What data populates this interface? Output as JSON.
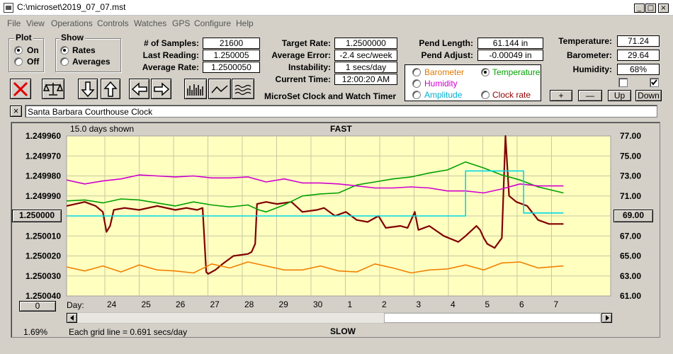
{
  "window": {
    "title": "C:\\microset\\2019_07_07.mst"
  },
  "menu": [
    "File",
    "View",
    "Operations",
    "Controls",
    "Watches",
    "GPS",
    "Configure",
    "Help"
  ],
  "plot_group": {
    "title": "Plot",
    "options": [
      "On",
      "Off"
    ],
    "selected": "On"
  },
  "show_group": {
    "title": "Show",
    "options": [
      "Rates",
      "Averages"
    ],
    "selected": "Rates"
  },
  "stats": {
    "samples_label": "# of Samples:",
    "samples": "21600",
    "last_reading_label": "Last Reading:",
    "last_reading": "1.250005",
    "average_rate_label": "Average Rate:",
    "average_rate": "1.2500050",
    "target_rate_label": "Target Rate:",
    "target_rate": "1.2500000",
    "average_error_label": "Average Error:",
    "average_error": "-2.4 sec/week",
    "instability_label": "Instability:",
    "instability": "1 secs/day",
    "current_time_label": "Current Time:",
    "current_time": "12:00:20 AM",
    "pend_length_label": "Pend Length:",
    "pend_length": "61.144 in",
    "pend_adjust_label": "Pend Adjust:",
    "pend_adjust": "-0.00049 in",
    "temperature_label": "Temperature:",
    "temperature": "71.24",
    "barometer_label": "Barometer:",
    "barometer": "29.64",
    "humidity_label": "Humidity:",
    "humidity": "68%"
  },
  "app_caption": "MicroSet Clock and Watch Timer",
  "second_axis_options": [
    {
      "label": "Barometer",
      "color": "#e07800",
      "selected": false
    },
    {
      "label": "Temperature",
      "color": "#00a000",
      "selected": true
    },
    {
      "label": "Humidity",
      "color": "#d000d0",
      "selected": false
    },
    {
      "label": "Amplitude",
      "color": "#00b0d0",
      "selected": false
    },
    {
      "label": "Clock rate",
      "color": "#900000",
      "selected": false
    }
  ],
  "right_buttons": {
    "plus": "+",
    "minus": "—",
    "up": "Up",
    "down": "Down"
  },
  "clock_name": "Santa Barbara Courthouse Clock",
  "close_glyph": "×",
  "plot": {
    "days_shown": "15.0 days shown",
    "fast": "FAST",
    "slow": "SLOW",
    "center_button": "1.250000",
    "right_center_button": "69.00",
    "bottom_button": "0",
    "percent": "1.69%",
    "grid_note": "Each grid line = 0.691 secs/day",
    "day_label": "Day:"
  },
  "chart_data": {
    "type": "line",
    "title": "",
    "y_left_ticks": [
      "1.249960",
      "1.249970",
      "1.249980",
      "1.249990",
      "1.250000",
      "1.250010",
      "1.250020",
      "1.250030",
      "1.250040"
    ],
    "y_left_range": [
      1.24996,
      1.25004
    ],
    "y_right_ticks": [
      "77.00",
      "75.00",
      "73.00",
      "71.00",
      "69.00",
      "67.00",
      "65.00",
      "63.00",
      "61.00"
    ],
    "y_right_range": [
      61,
      77
    ],
    "x_ticks": [
      "24",
      "25",
      "26",
      "27",
      "28",
      "29",
      "30",
      "1",
      "2",
      "3",
      "4",
      "5",
      "6",
      "7"
    ],
    "x_range": [
      0,
      15
    ],
    "grid": true,
    "series": [
      {
        "color": "#800000",
        "axis": "left",
        "x": [
          0,
          0.5,
          0.8,
          1.0,
          1.1,
          1.2,
          1.3,
          1.6,
          2.0,
          2.5,
          3.0,
          3.3,
          3.6,
          3.75,
          3.85,
          3.9,
          4.1,
          4.3,
          4.6,
          5.0,
          5.1,
          5.2,
          5.25,
          5.5,
          5.8,
          6.2,
          6.5,
          6.9,
          7.1,
          7.4,
          7.7,
          8.0,
          8.3,
          8.6,
          8.8,
          9.2,
          9.4,
          9.6,
          9.7,
          10.0,
          10.4,
          10.8,
          11.0,
          11.3,
          11.4,
          11.5,
          11.6,
          11.8,
          12.0,
          12.1,
          12.2,
          12.4,
          12.7,
          13.0,
          13.3,
          13.7
        ],
        "y": [
          1.249995,
          1.249993,
          1.249995,
          1.249998,
          1.250008,
          1.250005,
          1.249997,
          1.249996,
          1.249997,
          1.249995,
          1.249997,
          1.249996,
          1.249997,
          1.249996,
          1.250028,
          1.250029,
          1.250027,
          1.250024,
          1.25002,
          1.250019,
          1.250018,
          1.250014,
          1.249994,
          1.249993,
          1.249994,
          1.249993,
          1.249998,
          1.249997,
          1.249996,
          1.25,
          1.249998,
          1.250002,
          1.250003,
          1.25,
          1.250006,
          1.250005,
          1.250006,
          1.249998,
          1.250007,
          1.250005,
          1.25001,
          1.250013,
          1.25001,
          1.250005,
          1.250007,
          1.250011,
          1.250014,
          1.250016,
          1.250011,
          1.24996,
          1.24999,
          1.249993,
          1.249995,
          1.250002,
          1.250004,
          1.250004
        ]
      },
      {
        "color": "#00a000",
        "axis": "right",
        "x": [
          0,
          0.5,
          1.0,
          1.5,
          2.0,
          3.0,
          3.5,
          4.0,
          4.5,
          5.0,
          5.3,
          5.5,
          6.0,
          6.5,
          7.0,
          7.5,
          8.0,
          8.5,
          9.0,
          9.5,
          10.0,
          10.5,
          11.0,
          11.5,
          12.0,
          12.5,
          13.0,
          13.7
        ],
        "y": [
          70.5,
          70.6,
          70.3,
          70.7,
          70.6,
          70.0,
          70.4,
          70.1,
          69.9,
          70.1,
          69.6,
          69.4,
          70.1,
          71.0,
          71.2,
          71.3,
          72.1,
          72.4,
          72.7,
          72.9,
          73.3,
          73.6,
          74.4,
          73.8,
          73.1,
          72.6,
          71.9,
          71.3
        ]
      },
      {
        "color": "#d000d0",
        "axis": "right",
        "x": [
          0,
          0.5,
          1.0,
          1.5,
          2.0,
          2.5,
          3.0,
          3.5,
          4.0,
          4.5,
          5.0,
          5.5,
          6.0,
          6.5,
          7.0,
          7.5,
          8.0,
          8.5,
          9.0,
          9.5,
          10.0,
          10.5,
          11.0,
          11.5,
          12.0,
          12.5,
          13.0,
          13.7
        ],
        "y": [
          72.6,
          72.2,
          72.5,
          72.7,
          73.1,
          73.0,
          72.9,
          73.0,
          72.8,
          72.8,
          72.9,
          72.4,
          72.7,
          72.3,
          72.3,
          72.2,
          72.0,
          71.8,
          71.8,
          71.9,
          71.8,
          71.5,
          71.5,
          71.3,
          71.7,
          72.2,
          72.0,
          72.0
        ]
      },
      {
        "color": "#00d8e8",
        "axis": "right",
        "x": [
          0,
          11.0,
          11.0,
          12.6,
          12.6,
          13.7
        ],
        "y": [
          69.0,
          69.0,
          73.5,
          73.5,
          69.3,
          69.3
        ]
      },
      {
        "color": "#f08000",
        "axis": "right",
        "x": [
          0,
          0.5,
          1.0,
          1.5,
          2.0,
          2.5,
          3.0,
          3.5,
          4.0,
          4.5,
          5.0,
          5.5,
          6.0,
          6.5,
          7.0,
          7.5,
          8.0,
          8.5,
          9.0,
          9.5,
          10.0,
          10.5,
          11.0,
          11.5,
          12.0,
          12.5,
          13.0,
          13.7
        ],
        "y": [
          63.9,
          63.5,
          64.0,
          63.4,
          64.1,
          63.6,
          63.5,
          63.3,
          64.2,
          63.8,
          64.4,
          64.0,
          63.6,
          63.6,
          64.0,
          63.5,
          63.4,
          64.2,
          63.8,
          63.3,
          63.6,
          63.7,
          64.1,
          63.6,
          64.3,
          64.4,
          63.8,
          64.0
        ]
      }
    ]
  }
}
